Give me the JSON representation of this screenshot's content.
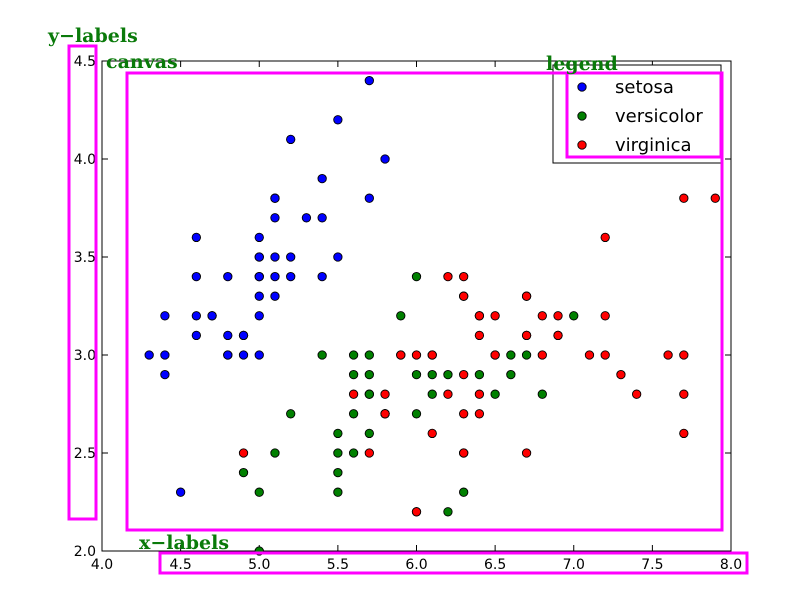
{
  "chart_data": {
    "type": "scatter",
    "title": "",
    "xlabel": "",
    "ylabel": "",
    "xlim": [
      4.0,
      8.0
    ],
    "ylim": [
      2.0,
      4.5
    ],
    "xticks": [
      4.0,
      4.5,
      5.0,
      5.5,
      6.0,
      6.5,
      7.0,
      7.5,
      8.0
    ],
    "yticks": [
      2.0,
      2.5,
      3.0,
      3.5,
      4.0,
      4.5
    ],
    "xtick_labels": [
      "4.0",
      "4.5",
      "5.0",
      "5.5",
      "6.0",
      "6.5",
      "7.0",
      "7.5",
      "8.0"
    ],
    "ytick_labels": [
      "2.0",
      "2.5",
      "3.0",
      "3.5",
      "4.0",
      "4.5"
    ],
    "grid": false,
    "legend_position": "top-right",
    "series": [
      {
        "name": "setosa",
        "color": "#0000ff",
        "points": [
          [
            5.1,
            3.5
          ],
          [
            4.9,
            3.0
          ],
          [
            4.7,
            3.2
          ],
          [
            4.6,
            3.1
          ],
          [
            5.0,
            3.6
          ],
          [
            5.4,
            3.9
          ],
          [
            4.6,
            3.4
          ],
          [
            5.0,
            3.4
          ],
          [
            4.4,
            2.9
          ],
          [
            4.9,
            3.1
          ],
          [
            5.4,
            3.7
          ],
          [
            4.8,
            3.4
          ],
          [
            4.8,
            3.0
          ],
          [
            4.3,
            3.0
          ],
          [
            5.8,
            4.0
          ],
          [
            5.7,
            4.4
          ],
          [
            5.1,
            3.8
          ],
          [
            5.7,
            3.8
          ],
          [
            5.1,
            3.7
          ],
          [
            4.6,
            3.6
          ],
          [
            5.1,
            3.3
          ],
          [
            5.0,
            3.0
          ],
          [
            5.2,
            3.5
          ],
          [
            5.2,
            3.4
          ],
          [
            4.7,
            3.2
          ],
          [
            5.4,
            3.4
          ],
          [
            5.2,
            4.1
          ],
          [
            5.5,
            4.2
          ],
          [
            5.0,
            3.2
          ],
          [
            5.5,
            3.5
          ],
          [
            4.4,
            3.0
          ],
          [
            5.1,
            3.4
          ],
          [
            5.0,
            3.5
          ],
          [
            4.5,
            2.3
          ],
          [
            4.4,
            3.2
          ],
          [
            5.0,
            3.5
          ],
          [
            5.1,
            3.8
          ],
          [
            4.8,
            3.0
          ],
          [
            4.6,
            3.2
          ],
          [
            5.3,
            3.7
          ],
          [
            5.0,
            3.3
          ],
          [
            4.8,
            3.1
          ],
          [
            4.9,
            3.1
          ],
          [
            5.0,
            3.4
          ]
        ]
      },
      {
        "name": "versicolor",
        "color": "#008000",
        "points": [
          [
            7.0,
            3.2
          ],
          [
            6.4,
            3.2
          ],
          [
            6.9,
            3.1
          ],
          [
            5.5,
            2.3
          ],
          [
            6.5,
            2.8
          ],
          [
            5.7,
            2.8
          ],
          [
            6.3,
            3.3
          ],
          [
            4.9,
            2.4
          ],
          [
            6.6,
            2.9
          ],
          [
            5.2,
            2.7
          ],
          [
            5.0,
            2.0
          ],
          [
            5.9,
            3.0
          ],
          [
            6.0,
            2.2
          ],
          [
            6.1,
            2.9
          ],
          [
            5.6,
            2.9
          ],
          [
            6.7,
            3.1
          ],
          [
            5.6,
            3.0
          ],
          [
            5.8,
            2.7
          ],
          [
            6.2,
            2.2
          ],
          [
            5.6,
            2.5
          ],
          [
            5.9,
            3.2
          ],
          [
            6.1,
            2.8
          ],
          [
            6.3,
            2.5
          ],
          [
            6.4,
            2.9
          ],
          [
            6.6,
            3.0
          ],
          [
            6.8,
            2.8
          ],
          [
            6.7,
            3.0
          ],
          [
            6.0,
            2.9
          ],
          [
            5.7,
            2.6
          ],
          [
            5.5,
            2.4
          ],
          [
            5.8,
            2.7
          ],
          [
            6.0,
            2.7
          ],
          [
            5.4,
            3.0
          ],
          [
            6.0,
            3.4
          ],
          [
            6.3,
            2.3
          ],
          [
            5.5,
            2.5
          ],
          [
            5.5,
            2.6
          ],
          [
            5.0,
            2.3
          ],
          [
            5.1,
            2.5
          ],
          [
            5.7,
            3.0
          ],
          [
            5.7,
            2.9
          ],
          [
            6.2,
            2.9
          ],
          [
            5.7,
            2.8
          ],
          [
            5.6,
            2.7
          ],
          [
            6.1,
            3.0
          ]
        ]
      },
      {
        "name": "virginica",
        "color": "#ff0000",
        "points": [
          [
            6.3,
            3.3
          ],
          [
            5.8,
            2.7
          ],
          [
            7.1,
            3.0
          ],
          [
            6.3,
            2.9
          ],
          [
            6.5,
            3.0
          ],
          [
            7.6,
            3.0
          ],
          [
            4.9,
            2.5
          ],
          [
            7.3,
            2.9
          ],
          [
            6.7,
            2.5
          ],
          [
            7.2,
            3.6
          ],
          [
            6.5,
            3.2
          ],
          [
            6.4,
            2.7
          ],
          [
            6.8,
            3.0
          ],
          [
            5.7,
            2.5
          ],
          [
            5.8,
            2.8
          ],
          [
            6.4,
            3.2
          ],
          [
            7.7,
            3.8
          ],
          [
            7.7,
            2.6
          ],
          [
            6.0,
            2.2
          ],
          [
            6.9,
            3.2
          ],
          [
            5.6,
            2.8
          ],
          [
            7.7,
            2.8
          ],
          [
            6.3,
            2.7
          ],
          [
            6.7,
            3.3
          ],
          [
            7.2,
            3.2
          ],
          [
            6.2,
            2.8
          ],
          [
            6.1,
            3.0
          ],
          [
            6.4,
            2.8
          ],
          [
            7.2,
            3.0
          ],
          [
            7.4,
            2.8
          ],
          [
            7.9,
            3.8
          ],
          [
            6.1,
            2.6
          ],
          [
            7.7,
            3.0
          ],
          [
            6.3,
            3.4
          ],
          [
            6.4,
            3.1
          ],
          [
            6.0,
            3.0
          ],
          [
            6.9,
            3.1
          ],
          [
            6.7,
            3.1
          ],
          [
            6.8,
            3.2
          ],
          [
            6.5,
            3.0
          ],
          [
            6.2,
            3.4
          ],
          [
            5.9,
            3.0
          ],
          [
            6.7,
            3.3
          ],
          [
            6.3,
            2.5
          ]
        ]
      }
    ]
  },
  "annotations": {
    "y_labels": "y−labels",
    "canvas": "canvas",
    "legend": "legend",
    "x_labels": "x−labels",
    "box_color": "#ff00ff",
    "text_color": "#0a7a0a"
  }
}
